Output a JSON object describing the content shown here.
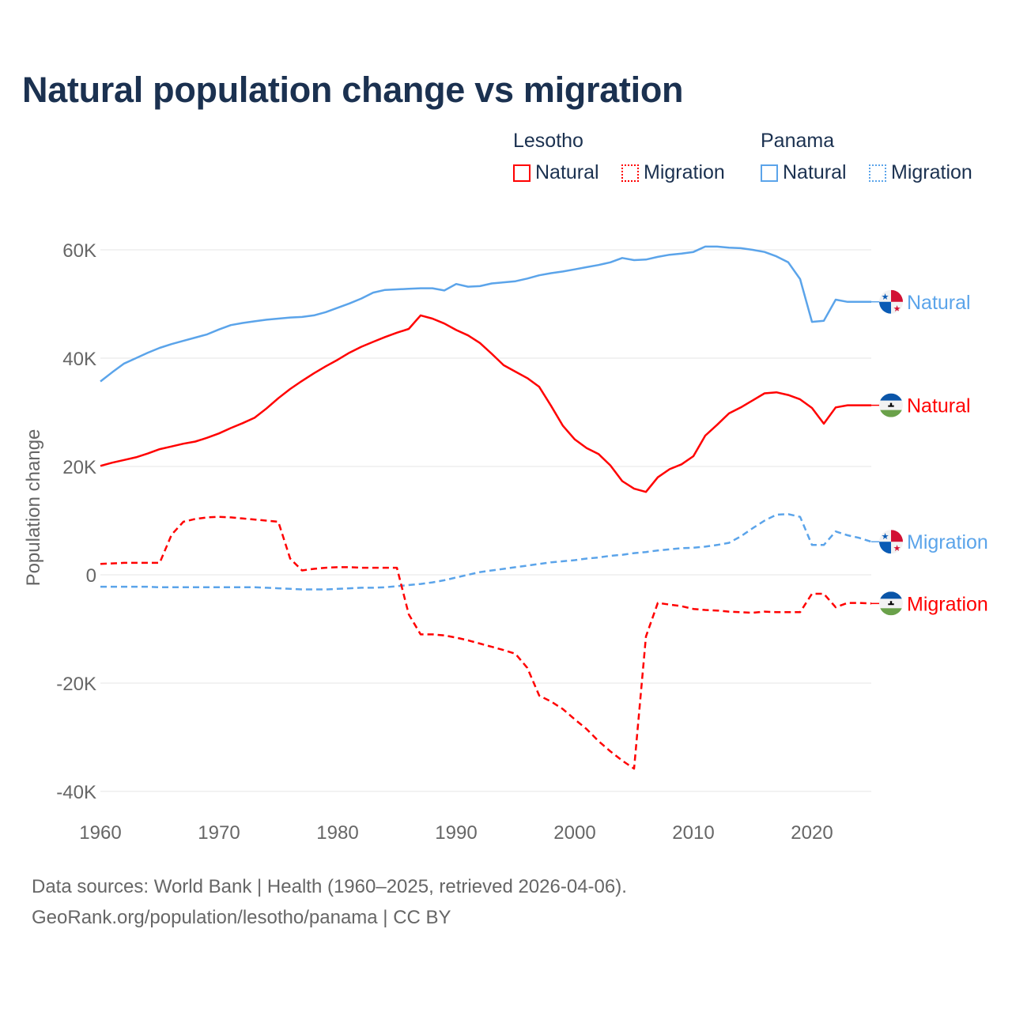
{
  "title": "Natural population change vs migration",
  "legend": {
    "groups": [
      {
        "name": "Lesotho",
        "color": "#ff0000",
        "items": [
          "Natural",
          "Migration"
        ]
      },
      {
        "name": "Panama",
        "color": "#5ba4ea",
        "items": [
          "Natural",
          "Migration"
        ]
      }
    ]
  },
  "footer": {
    "line1": "Data sources: World Bank | Health (1960–2025, retrieved 2026-04-06).",
    "line2": "GeoRank.org/population/lesotho/panama | CC BY"
  },
  "chart_data": {
    "type": "line",
    "title": "Natural population change vs migration",
    "xlabel": "",
    "ylabel": "Population change",
    "xlim": [
      1960,
      2025
    ],
    "ylim": [
      -40000,
      60000
    ],
    "y_ticks": [
      -40000,
      -20000,
      0,
      20000,
      40000,
      60000
    ],
    "y_tick_labels": [
      "-40K",
      "-20K",
      "0",
      "20K",
      "40K",
      "60K"
    ],
    "x_ticks": [
      1960,
      1970,
      1980,
      1990,
      2000,
      2010,
      2020
    ],
    "x_tick_labels": [
      "1960",
      "1970",
      "1980",
      "1990",
      "2000",
      "2010",
      "2020"
    ],
    "grid": true,
    "legend_position": "top-right",
    "x_start": 1960,
    "series": [
      {
        "name": "Panama Natural",
        "label": "Natural",
        "country": "Panama",
        "color": "#5ba4ea",
        "dashed": false,
        "values": [
          35700,
          37400,
          39000,
          40000,
          41000,
          41900,
          42600,
          43200,
          43800,
          44400,
          45300,
          46100,
          46500,
          46800,
          47100,
          47300,
          47500,
          47600,
          47900,
          48500,
          49300,
          50100,
          51000,
          52100,
          52600,
          52700,
          52800,
          52900,
          52900,
          52500,
          53700,
          53200,
          53300,
          53800,
          54000,
          54200,
          54700,
          55300,
          55700,
          56000,
          56400,
          56800,
          57200,
          57700,
          58500,
          58100,
          58200,
          58700,
          59100,
          59300,
          59600,
          60600,
          60600,
          60400,
          60300,
          60000,
          59600,
          58800,
          57700,
          54600,
          46700,
          46900,
          50800,
          50400,
          50400,
          50400
        ]
      },
      {
        "name": "Lesotho Natural",
        "label": "Natural",
        "country": "Lesotho",
        "color": "#ff0000",
        "dashed": false,
        "values": [
          20100,
          20700,
          21200,
          21700,
          22400,
          23200,
          23700,
          24200,
          24600,
          25300,
          26100,
          27100,
          28000,
          29000,
          30700,
          32600,
          34300,
          35800,
          37200,
          38500,
          39700,
          41000,
          42100,
          43000,
          43900,
          44700,
          45400,
          47900,
          47300,
          46400,
          45200,
          44200,
          42800,
          40800,
          38700,
          37500,
          36300,
          34700,
          31200,
          27500,
          25000,
          23400,
          22300,
          20200,
          17300,
          15900,
          15300,
          18000,
          19500,
          20400,
          21900,
          25700,
          27700,
          29800,
          30900,
          32200,
          33500,
          33700,
          33200,
          32400,
          30800,
          27900,
          30900,
          31300,
          31300,
          31300
        ]
      },
      {
        "name": "Panama Migration",
        "label": "Migration",
        "country": "Panama",
        "color": "#5ba4ea",
        "dashed": true,
        "values": [
          -2200,
          -2200,
          -2200,
          -2200,
          -2200,
          -2300,
          -2300,
          -2300,
          -2300,
          -2300,
          -2300,
          -2300,
          -2300,
          -2300,
          -2400,
          -2500,
          -2600,
          -2700,
          -2700,
          -2700,
          -2600,
          -2500,
          -2400,
          -2400,
          -2300,
          -2100,
          -1900,
          -1700,
          -1400,
          -1000,
          -500,
          0,
          500,
          800,
          1100,
          1400,
          1700,
          2000,
          2300,
          2500,
          2700,
          3000,
          3200,
          3500,
          3700,
          4000,
          4200,
          4500,
          4700,
          4900,
          5000,
          5200,
          5500,
          5900,
          7100,
          8600,
          10000,
          11100,
          11200,
          10700,
          5500,
          5500,
          8000,
          7300,
          6800,
          6100
        ]
      },
      {
        "name": "Lesotho Migration",
        "label": "Migration",
        "country": "Lesotho",
        "color": "#ff0000",
        "dashed": true,
        "values": [
          2000,
          2100,
          2200,
          2200,
          2200,
          2200,
          7400,
          9800,
          10300,
          10600,
          10700,
          10600,
          10400,
          10200,
          10000,
          9800,
          3000,
          800,
          1100,
          1300,
          1400,
          1400,
          1300,
          1300,
          1300,
          1300,
          -7300,
          -11000,
          -11000,
          -11200,
          -11600,
          -12100,
          -12700,
          -13300,
          -13900,
          -14600,
          -17200,
          -22300,
          -23400,
          -24800,
          -26700,
          -28500,
          -30700,
          -32600,
          -34300,
          -35800,
          -11400,
          -5200,
          -5500,
          -5800,
          -6300,
          -6500,
          -6600,
          -6800,
          -6900,
          -7000,
          -6800,
          -6900,
          -6900,
          -6900,
          -3500,
          -3500,
          -6000,
          -5200,
          -5200,
          -5300
        ]
      }
    ]
  }
}
